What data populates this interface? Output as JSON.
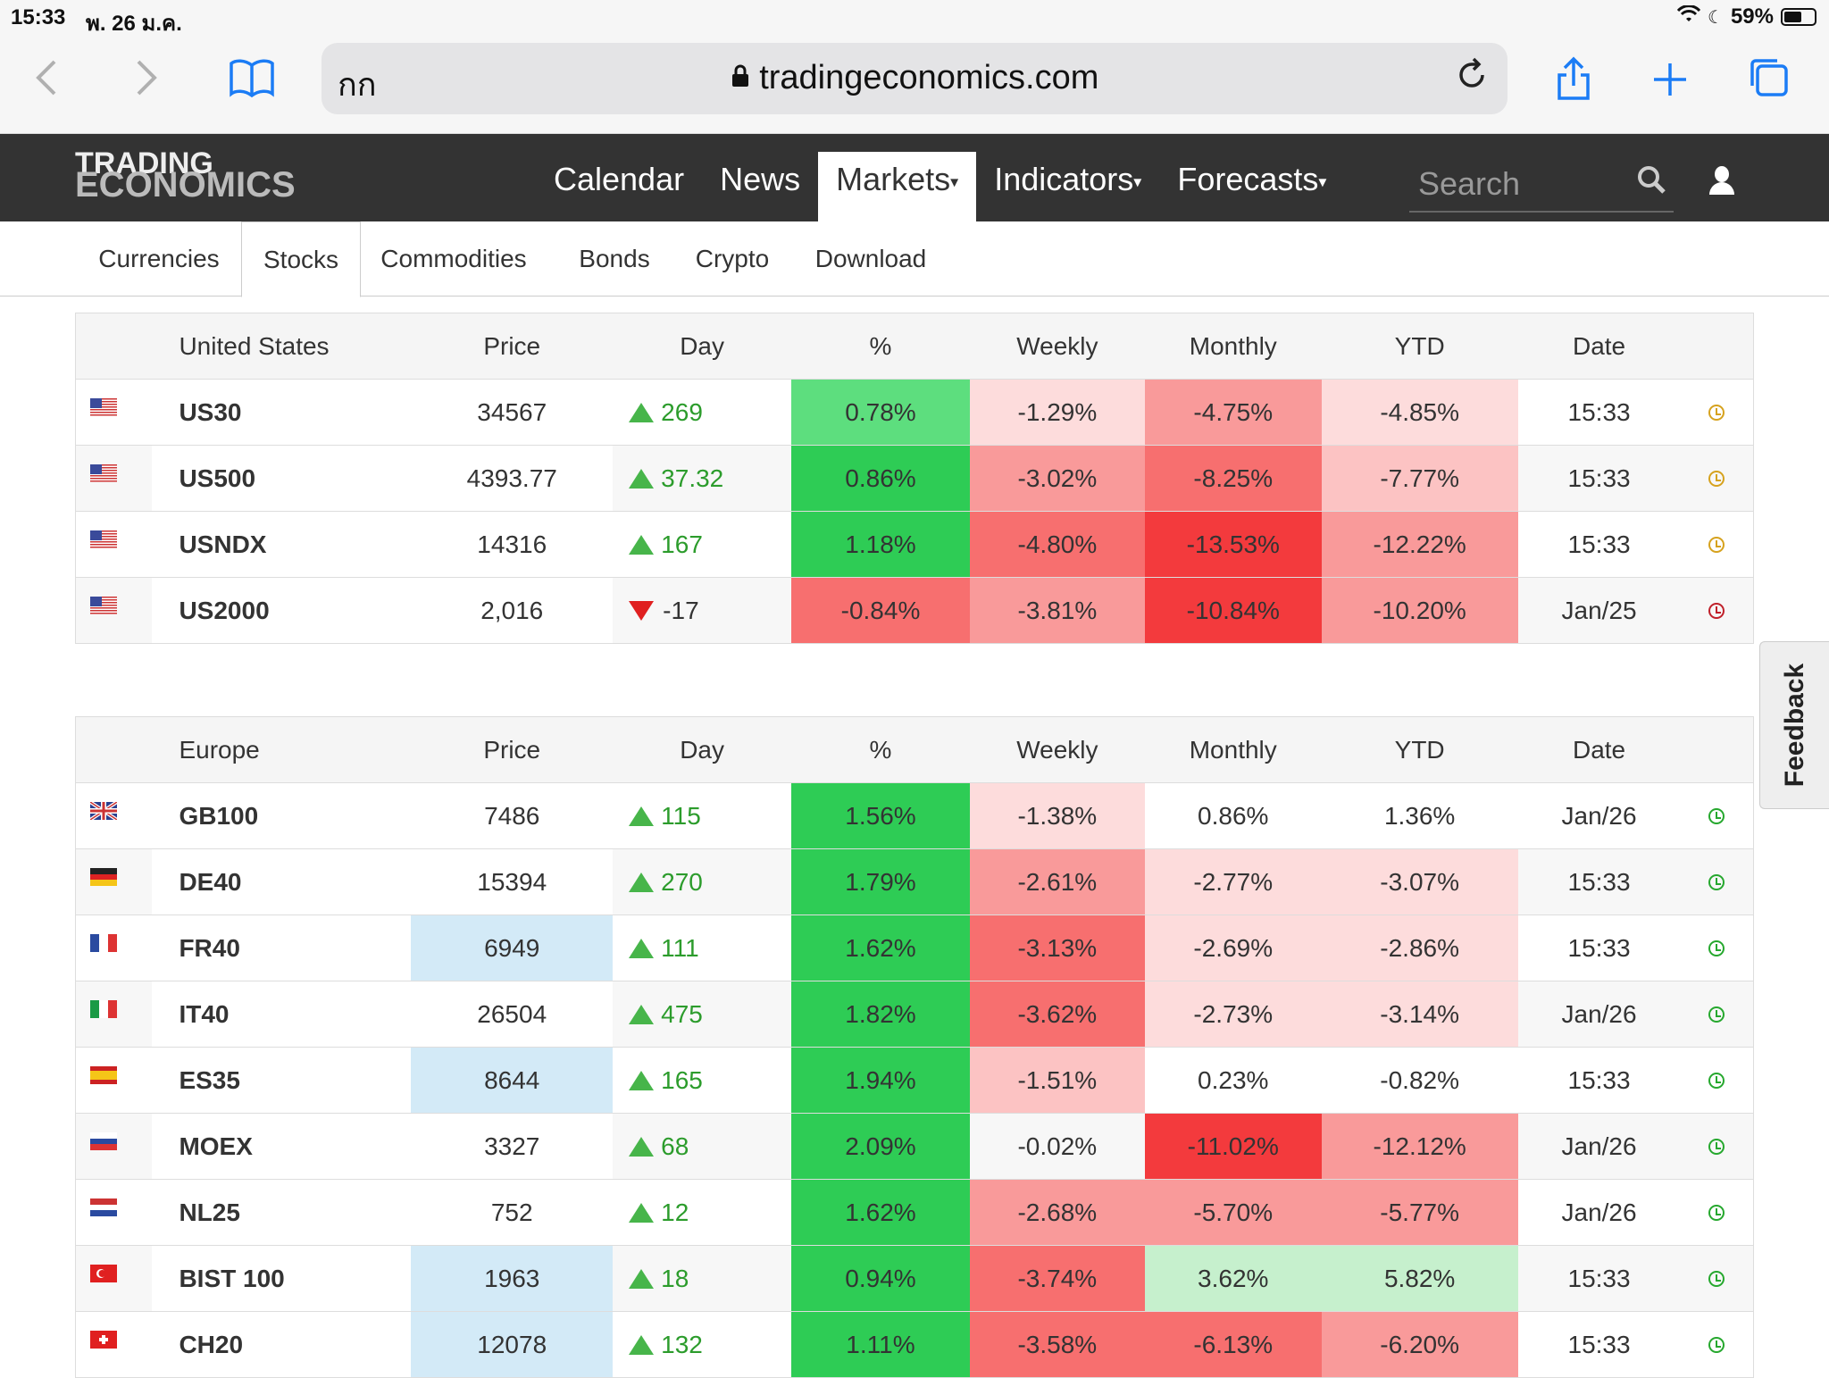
{
  "status_bar": {
    "time": "15:33",
    "date": "พ. 26 ม.ค.",
    "battery": "59%",
    "battery_level": 0.59
  },
  "browser": {
    "aa_label": "กก",
    "url": "tradingeconomics.com",
    "icons": [
      "back-icon",
      "forward-icon",
      "bookmarks-icon",
      "lock-icon",
      "reload-icon",
      "share-icon",
      "plus-icon",
      "tabs-icon"
    ]
  },
  "header": {
    "logo_line1": "TRADING",
    "logo_line2": "ECONOMICS",
    "nav": [
      {
        "label": "Calendar"
      },
      {
        "label": "News"
      },
      {
        "label": "Markets",
        "caret": "▾",
        "active": true
      },
      {
        "label": "Indicators",
        "caret": "▾"
      },
      {
        "label": "Forecasts",
        "caret": "▾"
      }
    ],
    "search_placeholder": "Search"
  },
  "subnav": {
    "tabs": [
      {
        "label": "Currencies"
      },
      {
        "label": "Stocks",
        "active": true
      },
      {
        "label": "Commodities"
      },
      {
        "label": "Bonds"
      },
      {
        "label": "Crypto"
      },
      {
        "label": "Download"
      }
    ]
  },
  "colors": {
    "green_strong": "#2ecc55",
    "green_light": "#5dde7e",
    "green_pale": "#c6f0cd",
    "red_strong": "#f33a3d",
    "red_mid": "#f76f6f",
    "red_soft": "#f99a9a",
    "red_light": "#fcc3c3",
    "red_pale": "#fddcdc",
    "blue_pale": "#d3eaf7",
    "clock_yellow": "#d6a21e",
    "clock_green": "#26a82e",
    "clock_red": "#c0202a"
  },
  "us_table": {
    "headers": [
      "United States",
      "Price",
      "Day",
      "%",
      "Weekly",
      "Monthly",
      "YTD",
      "Date"
    ],
    "rows": [
      {
        "flag": "us",
        "symbol": "US30",
        "price": "34567",
        "day": "269",
        "dir": "up",
        "pct": "0.78%",
        "weekly": "-1.29%",
        "monthly": "-4.75%",
        "ytd": "-4.85%",
        "date": "15:33",
        "clock": "yellow",
        "bg": {
          "price": "",
          "pct": "green_light",
          "weekly": "red_pale",
          "monthly": "red_soft",
          "ytd": "red_pale"
        }
      },
      {
        "flag": "us",
        "symbol": "US500",
        "price": "4393.77",
        "day": "37.32",
        "dir": "up",
        "pct": "0.86%",
        "weekly": "-3.02%",
        "monthly": "-8.25%",
        "ytd": "-7.77%",
        "date": "15:33",
        "clock": "yellow",
        "bg": {
          "price": "",
          "pct": "green_strong",
          "weekly": "red_soft",
          "monthly": "red_mid",
          "ytd": "red_light"
        }
      },
      {
        "flag": "us",
        "symbol": "USNDX",
        "price": "14316",
        "day": "167",
        "dir": "up",
        "pct": "1.18%",
        "weekly": "-4.80%",
        "monthly": "-13.53%",
        "ytd": "-12.22%",
        "date": "15:33",
        "clock": "yellow",
        "bg": {
          "price": "",
          "pct": "green_strong",
          "weekly": "red_mid",
          "monthly": "red_strong",
          "ytd": "red_soft"
        }
      },
      {
        "flag": "us",
        "symbol": "US2000",
        "price": "2,016",
        "day": "-17",
        "dir": "down",
        "pct": "-0.84%",
        "weekly": "-3.81%",
        "monthly": "-10.84%",
        "ytd": "-10.20%",
        "date": "Jan/25",
        "clock": "red",
        "bg": {
          "price": "",
          "pct": "red_mid",
          "weekly": "red_soft",
          "monthly": "red_strong",
          "ytd": "red_soft"
        }
      }
    ]
  },
  "europe_table": {
    "headers": [
      "Europe",
      "Price",
      "Day",
      "%",
      "Weekly",
      "Monthly",
      "YTD",
      "Date"
    ],
    "rows": [
      {
        "flag": "gb",
        "symbol": "GB100",
        "price": "7486",
        "day": "115",
        "dir": "up",
        "pct": "1.56%",
        "weekly": "-1.38%",
        "monthly": "0.86%",
        "ytd": "1.36%",
        "date": "Jan/26",
        "clock": "green",
        "bg": {
          "price": "",
          "pct": "green_strong",
          "weekly": "red_pale",
          "monthly": "",
          "ytd": ""
        }
      },
      {
        "flag": "de",
        "symbol": "DE40",
        "price": "15394",
        "day": "270",
        "dir": "up",
        "pct": "1.79%",
        "weekly": "-2.61%",
        "monthly": "-2.77%",
        "ytd": "-3.07%",
        "date": "15:33",
        "clock": "green",
        "bg": {
          "price": "",
          "pct": "green_strong",
          "weekly": "red_soft",
          "monthly": "red_pale",
          "ytd": "red_pale"
        }
      },
      {
        "flag": "fr",
        "symbol": "FR40",
        "price": "6949",
        "day": "111",
        "dir": "up",
        "pct": "1.62%",
        "weekly": "-3.13%",
        "monthly": "-2.69%",
        "ytd": "-2.86%",
        "date": "15:33",
        "clock": "green",
        "bg": {
          "price": "blue_pale",
          "pct": "green_strong",
          "weekly": "red_mid",
          "monthly": "red_pale",
          "ytd": "red_pale"
        }
      },
      {
        "flag": "it",
        "symbol": "IT40",
        "price": "26504",
        "day": "475",
        "dir": "up",
        "pct": "1.82%",
        "weekly": "-3.62%",
        "monthly": "-2.73%",
        "ytd": "-3.14%",
        "date": "Jan/26",
        "clock": "green",
        "bg": {
          "price": "",
          "pct": "green_strong",
          "weekly": "red_mid",
          "monthly": "red_pale",
          "ytd": "red_pale"
        }
      },
      {
        "flag": "es",
        "symbol": "ES35",
        "price": "8644",
        "day": "165",
        "dir": "up",
        "pct": "1.94%",
        "weekly": "-1.51%",
        "monthly": "0.23%",
        "ytd": "-0.82%",
        "date": "15:33",
        "clock": "green",
        "bg": {
          "price": "blue_pale",
          "pct": "green_strong",
          "weekly": "red_light",
          "monthly": "",
          "ytd": ""
        }
      },
      {
        "flag": "ru",
        "symbol": "MOEX",
        "price": "3327",
        "day": "68",
        "dir": "up",
        "pct": "2.09%",
        "weekly": "-0.02%",
        "monthly": "-11.02%",
        "ytd": "-12.12%",
        "date": "Jan/26",
        "clock": "green",
        "bg": {
          "price": "",
          "pct": "green_strong",
          "weekly": "",
          "monthly": "red_strong",
          "ytd": "red_soft"
        }
      },
      {
        "flag": "nl",
        "symbol": "NL25",
        "price": "752",
        "day": "12",
        "dir": "up",
        "pct": "1.62%",
        "weekly": "-2.68%",
        "monthly": "-5.70%",
        "ytd": "-5.77%",
        "date": "Jan/26",
        "clock": "green",
        "bg": {
          "price": "",
          "pct": "green_strong",
          "weekly": "red_soft",
          "monthly": "red_soft",
          "ytd": "red_soft"
        }
      },
      {
        "flag": "tr",
        "symbol": "BIST 100",
        "price": "1963",
        "day": "18",
        "dir": "up",
        "pct": "0.94%",
        "weekly": "-3.74%",
        "monthly": "3.62%",
        "ytd": "5.82%",
        "date": "15:33",
        "clock": "green",
        "bg": {
          "price": "blue_pale",
          "pct": "green_strong",
          "weekly": "red_mid",
          "monthly": "green_pale",
          "ytd": "green_pale"
        }
      },
      {
        "flag": "ch",
        "symbol": "CH20",
        "price": "12078",
        "day": "132",
        "dir": "up",
        "pct": "1.11%",
        "weekly": "-3.58%",
        "monthly": "-6.13%",
        "ytd": "-6.20%",
        "date": "15:33",
        "clock": "green",
        "bg": {
          "price": "blue_pale",
          "pct": "green_strong",
          "weekly": "red_mid",
          "monthly": "red_mid",
          "ytd": "red_soft"
        }
      }
    ]
  },
  "feedback_label": "Feedback"
}
